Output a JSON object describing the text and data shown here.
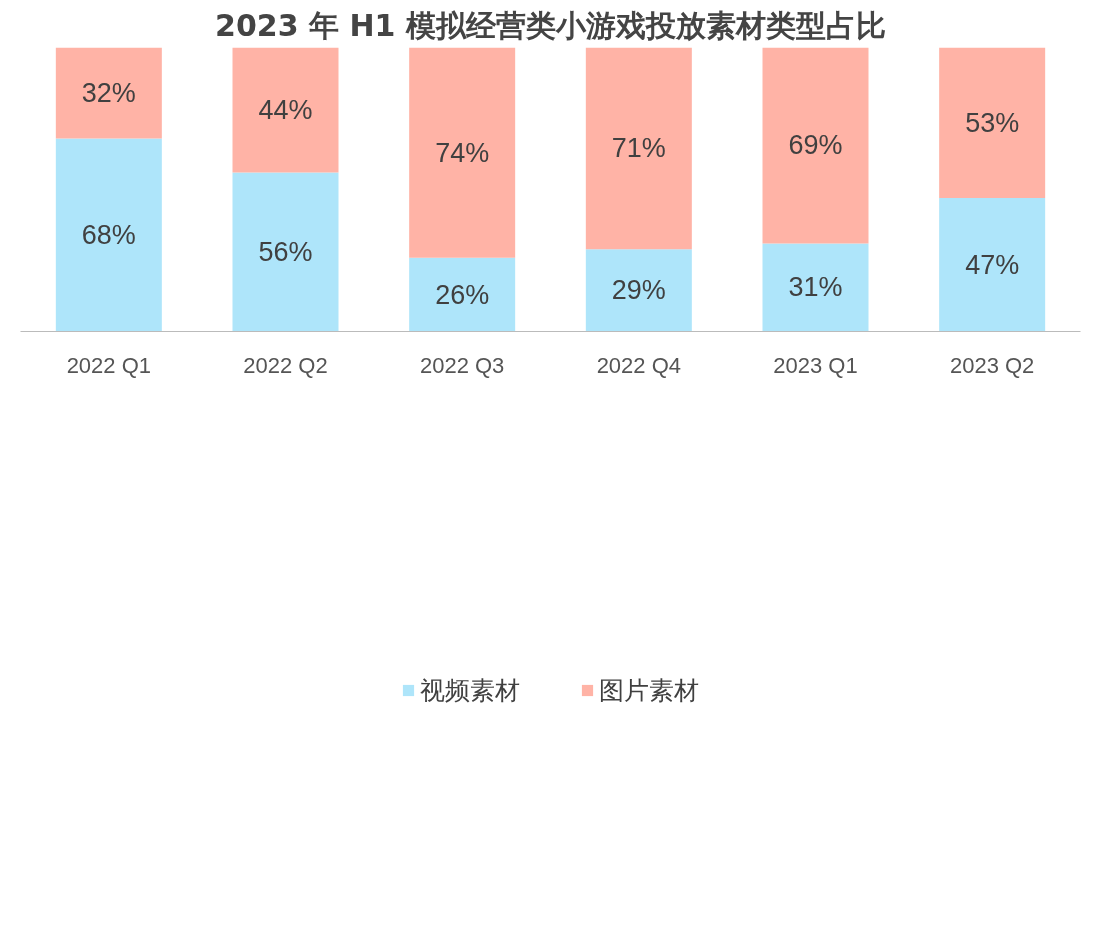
{
  "chart_data": {
    "type": "bar",
    "stacked": true,
    "title": "2023 年 H1 模拟经营类小游戏投放素材类型占比",
    "categories": [
      "2022 Q1",
      "2022 Q2",
      "2022 Q3",
      "2022 Q4",
      "2023 Q1",
      "2023 Q2"
    ],
    "series": [
      {
        "name": "视频素材",
        "color": "#aee5fa",
        "values": [
          68,
          56,
          26,
          29,
          31,
          47
        ],
        "value_labels": [
          "68%",
          "56%",
          "26%",
          "29%",
          "31%",
          "47%"
        ]
      },
      {
        "name": "图片素材",
        "color": "#ffb3a6",
        "values": [
          32,
          44,
          74,
          71,
          69,
          53
        ],
        "value_labels": [
          "32%",
          "44%",
          "74%",
          "71%",
          "69%",
          "53%"
        ]
      }
    ],
    "legend": "bottom",
    "grid": false
  }
}
